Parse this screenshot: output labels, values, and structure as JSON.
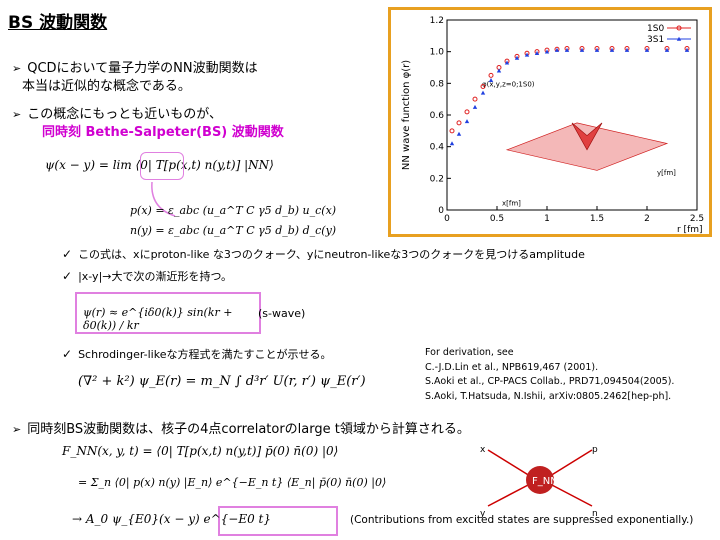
{
  "title": "BS 波動関数",
  "bullets": {
    "b1_line1": "QCDにおいて量子力学のNN波動関数は",
    "b1_line2": "本当は近似的な概念である。",
    "b2_line1": "この概念にもっとも近いものが、",
    "b2_line2": "同時刻 Bethe-Salpeter(BS) 波動関数",
    "b3": "同時刻BS波動関数は、核子の4点correlatorのlarge t領域から計算される。"
  },
  "checks": {
    "c1": "この式は、xにproton-like な3つのクォーク、yにneutron-likeな3つのクォークを見つけるamplitude",
    "c2": "|x-y|→大で次の漸近形を持つ。",
    "c3": "Schrodinger-likeな方程式を満たすことが示せる。"
  },
  "equations": {
    "bs_def": "ψ(x − y) = lim ⟨0| T[p(x,t) n(y,t)] |NN⟩",
    "p_def": "p(x) = ε_abc (u_a^T C γ5 d_b) u_c(x)",
    "n_def": "n(y) = ε_abc (u_a^T C γ5 d_b) d_c(y)",
    "asym": "ψ(r) ≈ e^{iδ0(k)} sin(kr + δ0(k)) / kr",
    "swave": "(s-wave)",
    "schr": "(∇² + k²) ψ_E(r) = m_N ∫ d³r′ U(r, r′) ψ_E(r′)",
    "f1": "F_NN(x, y, t) = ⟨0| T[p(x,t) n(y,t)] p̄(0) n̄(0) |0⟩",
    "f2": "= Σ_n ⟨0| p(x) n(y) |E_n⟩ e^{−E_n t} ⟨E_n| p̄(0) n̄(0) |0⟩",
    "f3": "→ A_0 ψ_{E0}(x − y) e^{−E0 t}",
    "excited": "(Contributions from excited states are suppressed exponentially.)"
  },
  "references": {
    "r1": "For derivation, see",
    "r2": "C.-J.D.Lin et al., NPB619,467 (2001).",
    "r3": "S.Aoki et al., CP-PACS Collab., PRD71,094504(2005).",
    "r4": "S.Aoki, T.Hatsuda, N.Ishii, arXiv:0805.2462[hep-ph]."
  },
  "chart_data": {
    "type": "scatter",
    "ylabel": "NN wave function φ(r)",
    "xlabel": "r [fm]",
    "xlim": [
      0,
      2.5
    ],
    "ylim": [
      0,
      1.2
    ],
    "x_ticks": [
      "0",
      "0.5",
      "1",
      "1.5",
      "2",
      "2.5"
    ],
    "y_ticks": [
      "0",
      "0.2",
      "0.4",
      "0.6",
      "0.8",
      "1.0",
      "1.2"
    ],
    "legend": [
      "1S0",
      "3S1"
    ],
    "legend_placement": "top-right",
    "inset_label": "φ(x,y,z=0;1S0)",
    "inset_axes": [
      "x[fm]",
      "y[fm]"
    ],
    "series": [
      {
        "name": "1S0",
        "color": "#e02020",
        "x": [
          0.05,
          0.12,
          0.2,
          0.28,
          0.36,
          0.44,
          0.52,
          0.6,
          0.7,
          0.8,
          0.9,
          1.0,
          1.1,
          1.2,
          1.35,
          1.5,
          1.65,
          1.8,
          2.0,
          2.2,
          2.4
        ],
        "y": [
          0.5,
          0.55,
          0.62,
          0.7,
          0.78,
          0.85,
          0.9,
          0.94,
          0.97,
          0.99,
          1.0,
          1.01,
          1.015,
          1.02,
          1.02,
          1.02,
          1.02,
          1.02,
          1.02,
          1.02,
          1.02
        ]
      },
      {
        "name": "3S1",
        "color": "#2040e0",
        "x": [
          0.05,
          0.12,
          0.2,
          0.28,
          0.36,
          0.44,
          0.52,
          0.6,
          0.7,
          0.8,
          0.9,
          1.0,
          1.1,
          1.2,
          1.35,
          1.5,
          1.65,
          1.8,
          2.0,
          2.2,
          2.4
        ],
        "y": [
          0.42,
          0.48,
          0.56,
          0.65,
          0.74,
          0.82,
          0.88,
          0.93,
          0.96,
          0.98,
          0.99,
          1.0,
          1.01,
          1.01,
          1.01,
          1.01,
          1.01,
          1.01,
          1.01,
          1.01,
          1.01
        ]
      }
    ]
  },
  "diagram": {
    "label": "F_NN",
    "in1": "x",
    "in2": "y",
    "out1": "p",
    "out2": "n"
  }
}
